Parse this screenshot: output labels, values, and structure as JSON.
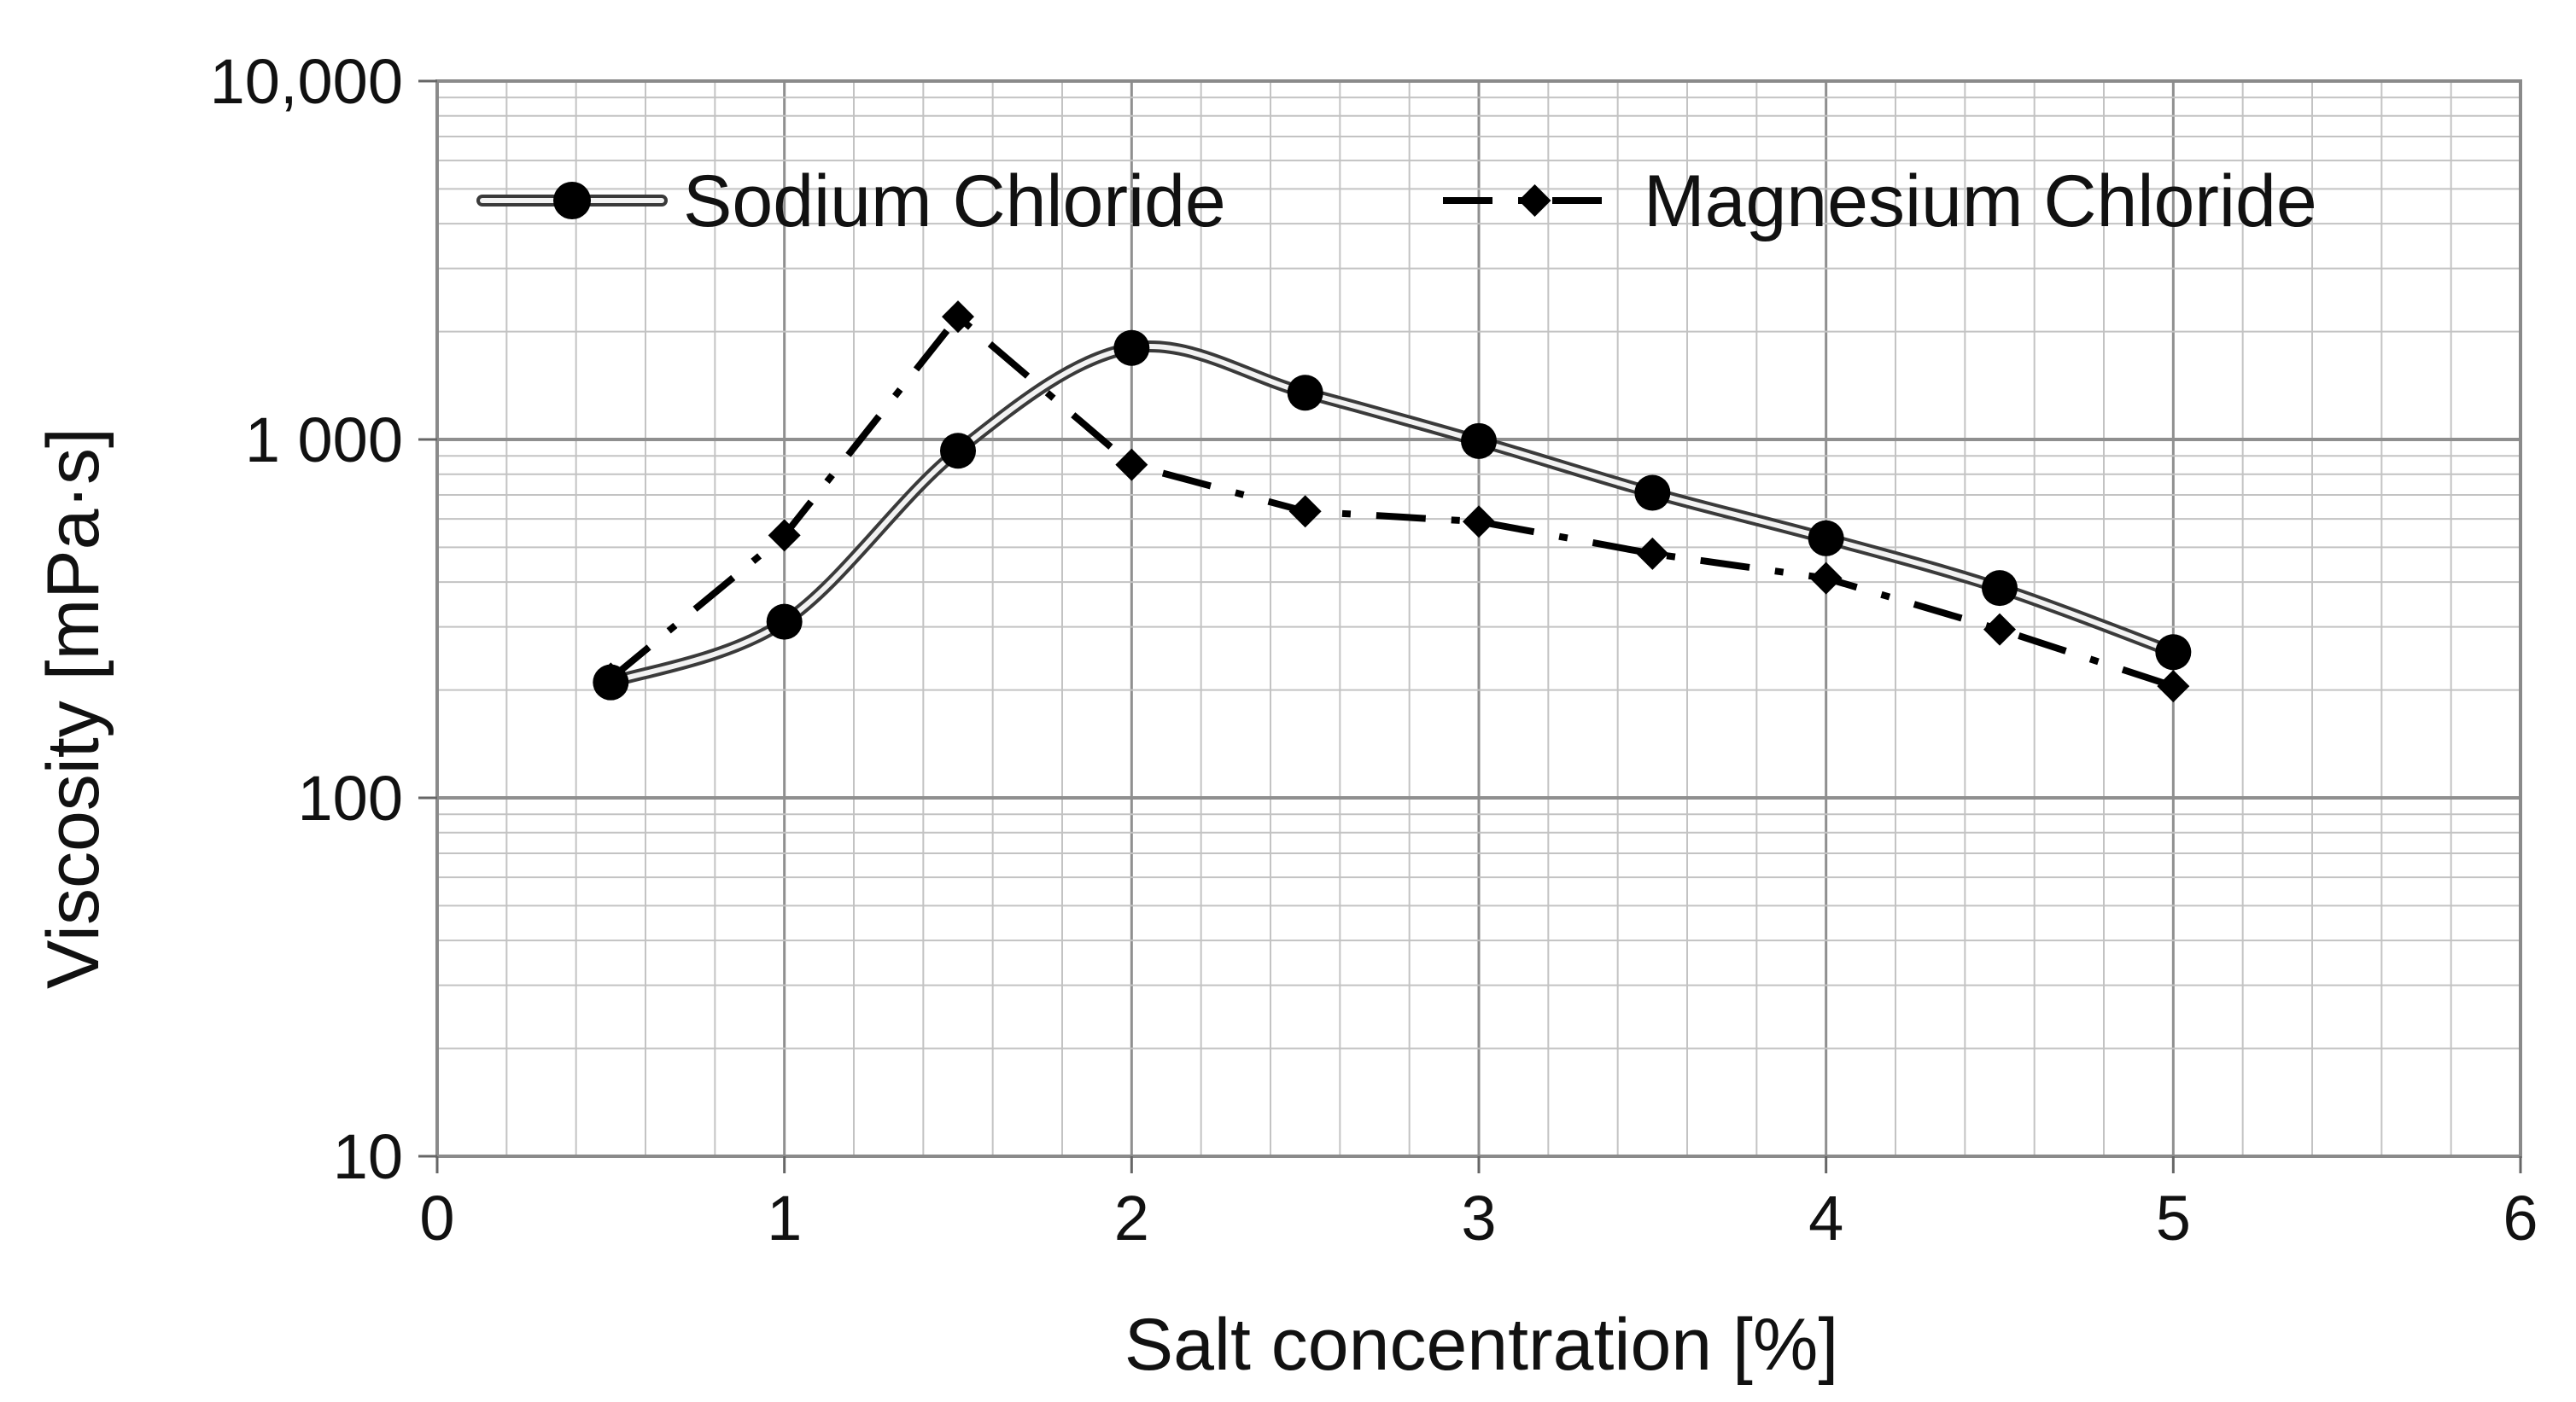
{
  "chart_data": {
    "type": "line",
    "xlabel": "Salt concentration [%]",
    "ylabel": "Viscosity [mPa·s]",
    "xlim": [
      0,
      6
    ],
    "ylim": [
      10,
      10000
    ],
    "y_scale": "log",
    "x_ticks": [
      0,
      1,
      2,
      3,
      4,
      5,
      6
    ],
    "x_tick_labels": [
      "0",
      "1",
      "2",
      "3",
      "4",
      "5",
      "6"
    ],
    "y_ticks": [
      10,
      100,
      1000,
      10000
    ],
    "y_tick_labels": [
      "10",
      "100",
      "1 000",
      "10,000"
    ],
    "grid": true,
    "legend_position": "top",
    "series": [
      {
        "name": "Sodium Chloride",
        "marker": "circle",
        "line_style": "double",
        "x": [
          0.5,
          1,
          1.5,
          2,
          2.5,
          3,
          3.5,
          4,
          4.5,
          5
        ],
        "values": [
          210,
          310,
          930,
          1800,
          1350,
          990,
          710,
          530,
          385,
          255
        ]
      },
      {
        "name": "Magnesium Chloride",
        "marker": "diamond",
        "line_style": "dash-dot",
        "x": [
          0.5,
          1,
          1.5,
          2,
          2.5,
          3,
          3.5,
          4,
          4.5,
          5
        ],
        "values": [
          215,
          540,
          2200,
          850,
          630,
          590,
          480,
          410,
          295,
          205
        ]
      }
    ]
  }
}
